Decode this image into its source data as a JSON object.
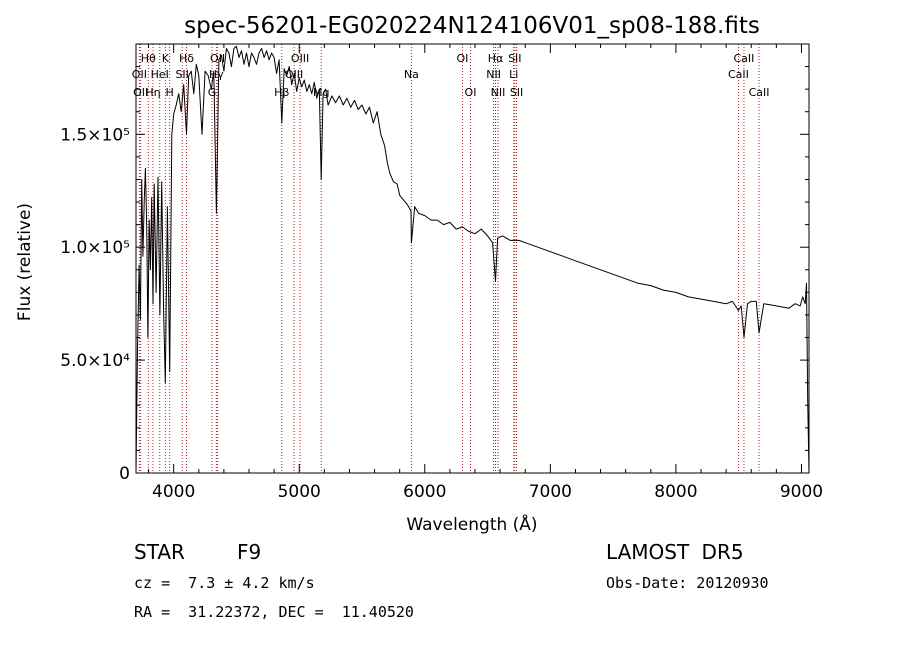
{
  "chart_data": {
    "type": "line",
    "title": "spec-56201-EG020224N124106V01_sp08-188.fits",
    "xlabel": "Wavelength (Å)",
    "ylabel": "Flux (relative)",
    "xlim": [
      3700,
      9060
    ],
    "ylim": [
      0,
      190000
    ],
    "x_ticks": [
      4000,
      5000,
      6000,
      7000,
      8000,
      9000
    ],
    "x_tick_labels": [
      "4000",
      "5000",
      "6000",
      "7000",
      "8000",
      "9000"
    ],
    "y_ticks": [
      0,
      50000,
      100000,
      150000
    ],
    "y_tick_labels": [
      "0",
      "5.0×10⁴",
      "1.0×10⁵",
      "1.5×10⁵"
    ],
    "grid": false,
    "line_color": "#000000",
    "marker_color": "#b22222",
    "series": [
      {
        "x": [
          3700,
          3712,
          3725,
          3735,
          3745,
          3755,
          3765,
          3775,
          3785,
          3795,
          3805,
          3815,
          3825,
          3835,
          3845,
          3860,
          3875,
          3890,
          3905,
          3920,
          3933,
          3950,
          3968,
          3985,
          4000,
          4020,
          4040,
          4060,
          4080,
          4102,
          4120,
          4140,
          4160,
          4180,
          4200,
          4226,
          4250,
          4275,
          4300,
          4320,
          4340,
          4360,
          4380,
          4400,
          4420,
          4440,
          4460,
          4480,
          4500,
          4520,
          4540,
          4560,
          4580,
          4600,
          4620,
          4640,
          4660,
          4680,
          4700,
          4720,
          4740,
          4760,
          4780,
          4800,
          4820,
          4840,
          4861,
          4880,
          4900,
          4920,
          4940,
          4960,
          4980,
          5000,
          5020,
          5040,
          5060,
          5080,
          5100,
          5120,
          5140,
          5160,
          5175,
          5190,
          5210,
          5230,
          5260,
          5290,
          5320,
          5350,
          5380,
          5410,
          5440,
          5470,
          5500,
          5530,
          5560,
          5590,
          5620,
          5650,
          5680,
          5700,
          5720,
          5750,
          5780,
          5800,
          5830,
          5860,
          5890,
          5893,
          5920,
          5950,
          6000,
          6050,
          6100,
          6150,
          6200,
          6250,
          6300,
          6350,
          6400,
          6450,
          6500,
          6540,
          6563,
          6580,
          6620,
          6680,
          6750,
          6800,
          6900,
          7000,
          7100,
          7200,
          7300,
          7400,
          7500,
          7600,
          7700,
          7800,
          7900,
          8000,
          8100,
          8200,
          8300,
          8400,
          8450,
          8498,
          8520,
          8542,
          8570,
          8600,
          8640,
          8662,
          8700,
          8800,
          8900,
          8950,
          8990,
          9010,
          9030,
          9040,
          9050,
          9060
        ],
        "y": [
          0,
          55000,
          92000,
          68000,
          130000,
          96000,
          120000,
          135000,
          110000,
          60000,
          112000,
          90000,
          122000,
          75000,
          128000,
          80000,
          131000,
          70000,
          129000,
          72000,
          40000,
          118000,
          45000,
          150000,
          159000,
          163000,
          168000,
          160000,
          172000,
          150000,
          176000,
          178000,
          168000,
          181000,
          176000,
          150000,
          178000,
          176000,
          170000,
          178000,
          115000,
          183000,
          185000,
          178000,
          188000,
          186000,
          180000,
          188000,
          189000,
          184000,
          187000,
          181000,
          186000,
          180000,
          186000,
          184000,
          181000,
          186000,
          188000,
          184000,
          187000,
          183000,
          186000,
          184000,
          177000,
          183000,
          155000,
          179000,
          176000,
          180000,
          172000,
          177000,
          169000,
          175000,
          171000,
          174000,
          169000,
          172000,
          168000,
          173000,
          166000,
          170000,
          130000,
          168000,
          170000,
          163000,
          167000,
          164000,
          167000,
          163000,
          166000,
          162000,
          165000,
          161000,
          163000,
          159000,
          162000,
          155000,
          160000,
          150000,
          145000,
          138000,
          133000,
          129000,
          128000,
          123000,
          121000,
          119000,
          116000,
          102000,
          118000,
          115000,
          114000,
          112000,
          112000,
          110000,
          111000,
          108000,
          109000,
          107000,
          106000,
          108000,
          105000,
          102000,
          85000,
          104000,
          105000,
          103000,
          103000,
          102000,
          100000,
          98000,
          96000,
          94000,
          92000,
          90000,
          88000,
          86000,
          84000,
          83000,
          81000,
          80000,
          78000,
          77000,
          76000,
          75000,
          76000,
          72000,
          74000,
          60000,
          75000,
          76000,
          76000,
          62000,
          75000,
          74000,
          73000,
          75000,
          74000,
          78000,
          75000,
          84000,
          32000,
          0
        ]
      }
    ],
    "annotations": [
      {
        "label": "Hθ",
        "x": 3798,
        "row": 1
      },
      {
        "label": "K",
        "x": 3934,
        "row": 1
      },
      {
        "label": "Hδ",
        "x": 4102,
        "row": 1
      },
      {
        "label": "OII",
        "x": 4350,
        "row": 1
      },
      {
        "label": "OIII",
        "x": 5007,
        "row": 1
      },
      {
        "label": "OI",
        "x": 6300,
        "row": 1
      },
      {
        "label": "Hα",
        "x": 6563,
        "row": 1
      },
      {
        "label": "SII",
        "x": 6717,
        "row": 1
      },
      {
        "label": "CaII",
        "x": 8542,
        "row": 1
      },
      {
        "label": "OII",
        "x": 3727,
        "row": 2
      },
      {
        "label": "HeI",
        "x": 3889,
        "row": 2
      },
      {
        "label": "SII",
        "x": 4068,
        "row": 2
      },
      {
        "label": "Hγ",
        "x": 4340,
        "row": 2
      },
      {
        "label": "OIII",
        "x": 4959,
        "row": 2
      },
      {
        "label": "Na",
        "x": 5893,
        "row": 2
      },
      {
        "label": "NII",
        "x": 6548,
        "row": 2
      },
      {
        "label": "Li",
        "x": 6708,
        "row": 2
      },
      {
        "label": "CaII",
        "x": 8498,
        "row": 2
      },
      {
        "label": "OII",
        "x": 3737,
        "row": 3
      },
      {
        "label": "Hη",
        "x": 3835,
        "row": 3
      },
      {
        "label": "H",
        "x": 3968,
        "row": 3
      },
      {
        "label": "G",
        "x": 4305,
        "row": 3
      },
      {
        "label": "Hβ",
        "x": 4861,
        "row": 3
      },
      {
        "label": "Mg",
        "x": 5175,
        "row": 3
      },
      {
        "label": "OI",
        "x": 6364,
        "row": 3
      },
      {
        "label": "NII",
        "x": 6583,
        "row": 3
      },
      {
        "label": "SII",
        "x": 6731,
        "row": 3
      },
      {
        "label": "CaII",
        "x": 8662,
        "row": 3
      }
    ],
    "line_markers": [
      3727,
      3737,
      3798,
      3835,
      3889,
      3934,
      3968,
      4068,
      4102,
      4305,
      4340,
      4350,
      4861,
      4959,
      5007,
      5175,
      5893,
      6300,
      6364,
      6548,
      6563,
      6583,
      6708,
      6717,
      6731,
      8498,
      8542,
      8662
    ]
  },
  "info": {
    "object_class": "STAR",
    "subclass": "F9",
    "survey": "LAMOST DR5",
    "redshift": "cz =  7.3 ± 4.2 km/s",
    "obs_date": "Obs-Date: 20120930",
    "coords": "RA =  31.22372, DEC =  11.40520"
  }
}
